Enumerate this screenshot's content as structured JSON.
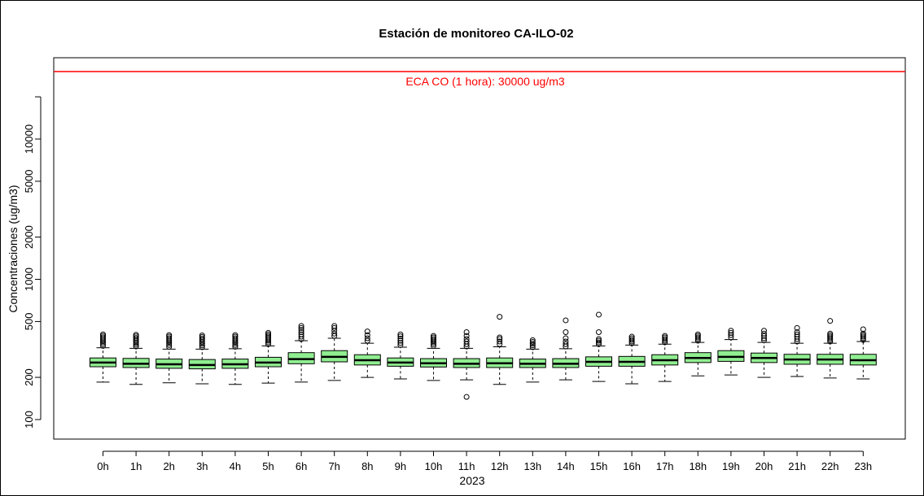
{
  "chart_data": {
    "type": "boxplot",
    "title": "Estación de monitoreo CA-ILO-02",
    "xlabel": "2023",
    "ylabel": "Concentraciones (ug/m3)",
    "y_scale": "log",
    "ylim": [
      80,
      55000
    ],
    "y_ticks": [
      100,
      200,
      500,
      1000,
      2000,
      5000,
      10000
    ],
    "box_color": "#90EE90",
    "reference_line": {
      "value": 30000,
      "label": "ECA CO (1 hora): 30000 ug/m3",
      "color": "#ff0000"
    },
    "categories": [
      "0h",
      "1h",
      "2h",
      "3h",
      "4h",
      "5h",
      "6h",
      "7h",
      "8h",
      "9h",
      "10h",
      "11h",
      "12h",
      "13h",
      "14h",
      "15h",
      "16h",
      "17h",
      "18h",
      "19h",
      "20h",
      "21h",
      "22h",
      "23h"
    ],
    "series": [
      {
        "whisker_low": 185,
        "q1": 238,
        "median": 255,
        "q3": 275,
        "whisker_high": 325,
        "outliers": [
          335,
          345,
          355,
          365,
          375,
          385,
          395,
          405
        ]
      },
      {
        "whisker_low": 178,
        "q1": 235,
        "median": 250,
        "q3": 273,
        "whisker_high": 322,
        "outliers": [
          332,
          342,
          352,
          362,
          372,
          382,
          392,
          402
        ]
      },
      {
        "whisker_low": 183,
        "q1": 232,
        "median": 248,
        "q3": 270,
        "whisker_high": 318,
        "outliers": [
          330,
          340,
          350,
          360,
          370,
          380,
          390,
          400
        ]
      },
      {
        "whisker_low": 180,
        "q1": 230,
        "median": 245,
        "q3": 268,
        "whisker_high": 318,
        "outliers": [
          328,
          338,
          348,
          358,
          368,
          378,
          388,
          398
        ]
      },
      {
        "whisker_low": 178,
        "q1": 232,
        "median": 248,
        "q3": 270,
        "whisker_high": 320,
        "outliers": [
          330,
          340,
          350,
          360,
          370,
          380,
          390,
          400
        ]
      },
      {
        "whisker_low": 182,
        "q1": 238,
        "median": 255,
        "q3": 278,
        "whisker_high": 335,
        "outliers": [
          345,
          355,
          365,
          375,
          385,
          395,
          405,
          415
        ]
      },
      {
        "whisker_low": 185,
        "q1": 250,
        "median": 270,
        "q3": 300,
        "whisker_high": 365,
        "outliers": [
          375,
          390,
          405,
          420,
          435,
          450,
          465
        ]
      },
      {
        "whisker_low": 190,
        "q1": 258,
        "median": 280,
        "q3": 310,
        "whisker_high": 380,
        "outliers": [
          395,
          410,
          430,
          450,
          465
        ]
      },
      {
        "whisker_low": 200,
        "q1": 245,
        "median": 265,
        "q3": 290,
        "whisker_high": 350,
        "outliers": [
          365,
          380,
          400,
          425
        ]
      },
      {
        "whisker_low": 195,
        "q1": 240,
        "median": 255,
        "q3": 275,
        "whisker_high": 328,
        "outliers": [
          340,
          352,
          365,
          378,
          392,
          405
        ]
      },
      {
        "whisker_low": 190,
        "q1": 237,
        "median": 252,
        "q3": 272,
        "whisker_high": 322,
        "outliers": [
          335,
          345,
          355,
          365,
          375,
          385,
          395
        ]
      },
      {
        "whisker_low": 192,
        "q1": 235,
        "median": 250,
        "q3": 272,
        "whisker_high": 322,
        "outliers": [
          332,
          345,
          360,
          375,
          395,
          420,
          145
        ]
      },
      {
        "whisker_low": 178,
        "q1": 235,
        "median": 252,
        "q3": 275,
        "whisker_high": 330,
        "outliers": [
          345,
          360,
          375,
          385,
          540
        ]
      },
      {
        "whisker_low": 185,
        "q1": 235,
        "median": 250,
        "q3": 270,
        "whisker_high": 318,
        "outliers": [
          328,
          338,
          348,
          358,
          368
        ]
      },
      {
        "whisker_low": 192,
        "q1": 235,
        "median": 250,
        "q3": 272,
        "whisker_high": 320,
        "outliers": [
          332,
          345,
          360,
          380,
          420,
          510
        ]
      },
      {
        "whisker_low": 187,
        "q1": 240,
        "median": 258,
        "q3": 280,
        "whisker_high": 335,
        "outliers": [
          345,
          355,
          365,
          375,
          420,
          560
        ]
      },
      {
        "whisker_low": 180,
        "q1": 240,
        "median": 258,
        "q3": 282,
        "whisker_high": 340,
        "outliers": [
          350,
          360,
          370,
          380,
          390
        ]
      },
      {
        "whisker_low": 187,
        "q1": 245,
        "median": 265,
        "q3": 290,
        "whisker_high": 345,
        "outliers": [
          355,
          365,
          375,
          385,
          395
        ]
      },
      {
        "whisker_low": 205,
        "q1": 255,
        "median": 275,
        "q3": 300,
        "whisker_high": 355,
        "outliers": [
          365,
          375,
          385,
          395,
          405
        ]
      },
      {
        "whisker_low": 208,
        "q1": 260,
        "median": 280,
        "q3": 310,
        "whisker_high": 372,
        "outliers": [
          385,
          400,
          415,
          430
        ]
      },
      {
        "whisker_low": 200,
        "q1": 255,
        "median": 275,
        "q3": 298,
        "whisker_high": 355,
        "outliers": [
          368,
          380,
          395,
          410,
          430
        ]
      },
      {
        "whisker_low": 203,
        "q1": 248,
        "median": 268,
        "q3": 292,
        "whisker_high": 350,
        "outliers": [
          360,
          375,
          390,
          405,
          420,
          450
        ]
      },
      {
        "whisker_low": 198,
        "q1": 248,
        "median": 268,
        "q3": 292,
        "whisker_high": 350,
        "outliers": [
          360,
          370,
          380,
          390,
          400,
          410,
          505
        ]
      },
      {
        "whisker_low": 195,
        "q1": 245,
        "median": 265,
        "q3": 292,
        "whisker_high": 360,
        "outliers": [
          370,
          380,
          390,
          400,
          410,
          440
        ]
      }
    ]
  }
}
